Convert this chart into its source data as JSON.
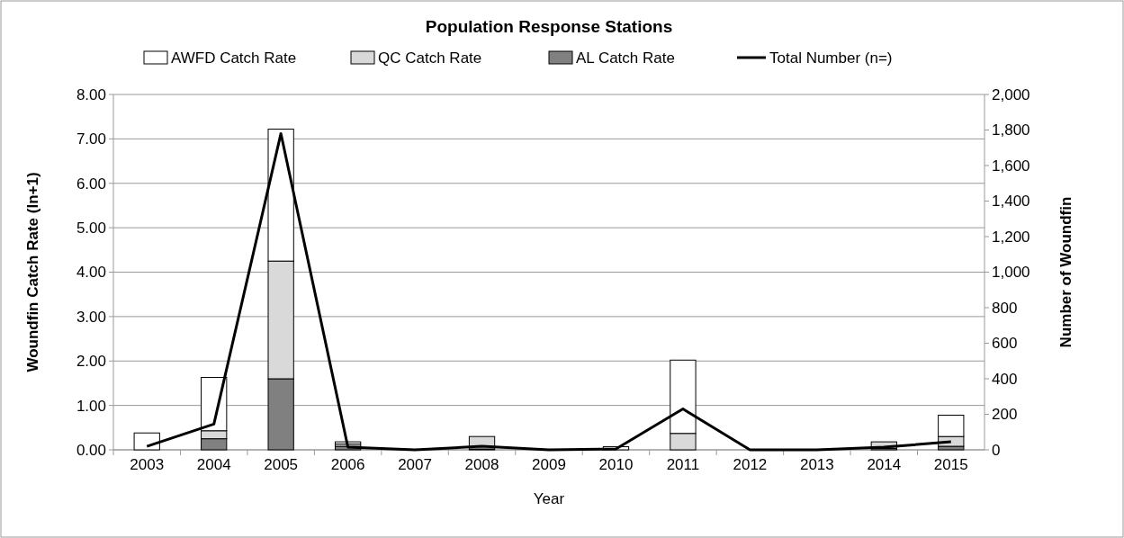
{
  "chart_data": {
    "type": "bar",
    "title": "Population Response Stations",
    "xlabel": "Year",
    "ylabel": "Woundfin Catch Rate (ln+1)",
    "y2label": "Number of Woundfin",
    "categories": [
      "2003",
      "2004",
      "2005",
      "2006",
      "2007",
      "2008",
      "2009",
      "2010",
      "2011",
      "2012",
      "2013",
      "2014",
      "2015"
    ],
    "stacked": true,
    "legend": "top",
    "grid": "y",
    "ylim": [
      0,
      8
    ],
    "yticks": [
      {
        "value": 0,
        "label": "0.00"
      },
      {
        "value": 1,
        "label": "1.00"
      },
      {
        "value": 2,
        "label": "2.00"
      },
      {
        "value": 3,
        "label": "3.00"
      },
      {
        "value": 4,
        "label": "4.00"
      },
      {
        "value": 5,
        "label": "5.00"
      },
      {
        "value": 6,
        "label": "6.00"
      },
      {
        "value": 7,
        "label": "7.00"
      },
      {
        "value": 8,
        "label": "8.00"
      }
    ],
    "y2lim": [
      0,
      2000
    ],
    "y2ticks": [
      0,
      200,
      400,
      600,
      800,
      {
        "value": 1000,
        "label": "1,000"
      },
      {
        "value": 1200,
        "label": "1,200"
      },
      {
        "value": 1400,
        "label": "1,400"
      },
      {
        "value": 1600,
        "label": "1,600"
      },
      {
        "value": 1800,
        "label": "1,800"
      },
      {
        "value": 2000,
        "label": "2,000"
      }
    ],
    "series": [
      {
        "name": "AL Catch Rate",
        "color": "#808080",
        "values": [
          0,
          0.25,
          1.6,
          0.08,
          0,
          0.02,
          0,
          0,
          0,
          0,
          0,
          0.03,
          0.08
        ]
      },
      {
        "name": "QC Catch Rate",
        "color": "#d9d9d9",
        "values": [
          0,
          0.18,
          2.65,
          0.05,
          0,
          0.28,
          0,
          null,
          0.37,
          0,
          0,
          0.15,
          0.22
        ]
      },
      {
        "name": "AWFD Catch Rate",
        "color": "#ffffff",
        "values": [
          0.38,
          1.2,
          2.97,
          0.05,
          0,
          0,
          0,
          0.07,
          1.65,
          0,
          0,
          0,
          0.48
        ]
      },
      {
        "name": "Total Number (n=)",
        "type": "line",
        "axis": "y2",
        "color": "#000000",
        "values": [
          20,
          145,
          1780,
          15,
          0,
          20,
          0,
          5,
          230,
          0,
          0,
          15,
          45
        ]
      }
    ]
  }
}
